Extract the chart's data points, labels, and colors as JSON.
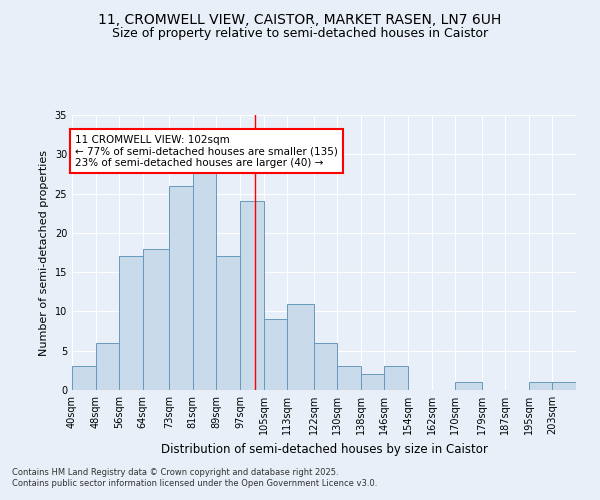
{
  "title": "11, CROMWELL VIEW, CAISTOR, MARKET RASEN, LN7 6UH",
  "subtitle": "Size of property relative to semi-detached houses in Caistor",
  "xlabel": "Distribution of semi-detached houses by size in Caistor",
  "ylabel": "Number of semi-detached properties",
  "bin_labels": [
    "40sqm",
    "48sqm",
    "56sqm",
    "64sqm",
    "73sqm",
    "81sqm",
    "89sqm",
    "97sqm",
    "105sqm",
    "113sqm",
    "122sqm",
    "130sqm",
    "138sqm",
    "146sqm",
    "154sqm",
    "162sqm",
    "170sqm",
    "179sqm",
    "187sqm",
    "195sqm",
    "203sqm"
  ],
  "bar_heights": [
    3,
    6,
    17,
    18,
    26,
    29,
    17,
    24,
    9,
    11,
    6,
    3,
    2,
    3,
    0,
    0,
    1,
    0,
    0,
    1,
    1
  ],
  "bar_color": "#c9daea",
  "bar_edge_color": "#6699bb",
  "background_color": "#e8eff8",
  "grid_color": "#ffffff",
  "property_line_x": 102,
  "bin_edges": [
    40,
    48,
    56,
    64,
    73,
    81,
    89,
    97,
    105,
    113,
    122,
    130,
    138,
    146,
    154,
    162,
    170,
    179,
    187,
    195,
    203,
    211
  ],
  "annotation_text": "11 CROMWELL VIEW: 102sqm\n← 77% of semi-detached houses are smaller (135)\n23% of semi-detached houses are larger (40) →",
  "footer_text": "Contains HM Land Registry data © Crown copyright and database right 2025.\nContains public sector information licensed under the Open Government Licence v3.0.",
  "ylim": [
    0,
    35
  ],
  "yticks": [
    0,
    5,
    10,
    15,
    20,
    25,
    30,
    35
  ],
  "title_fontsize": 10,
  "subtitle_fontsize": 9,
  "xlabel_fontsize": 8.5,
  "ylabel_fontsize": 8,
  "tick_fontsize": 7,
  "annotation_fontsize": 7.5,
  "footer_fontsize": 6
}
